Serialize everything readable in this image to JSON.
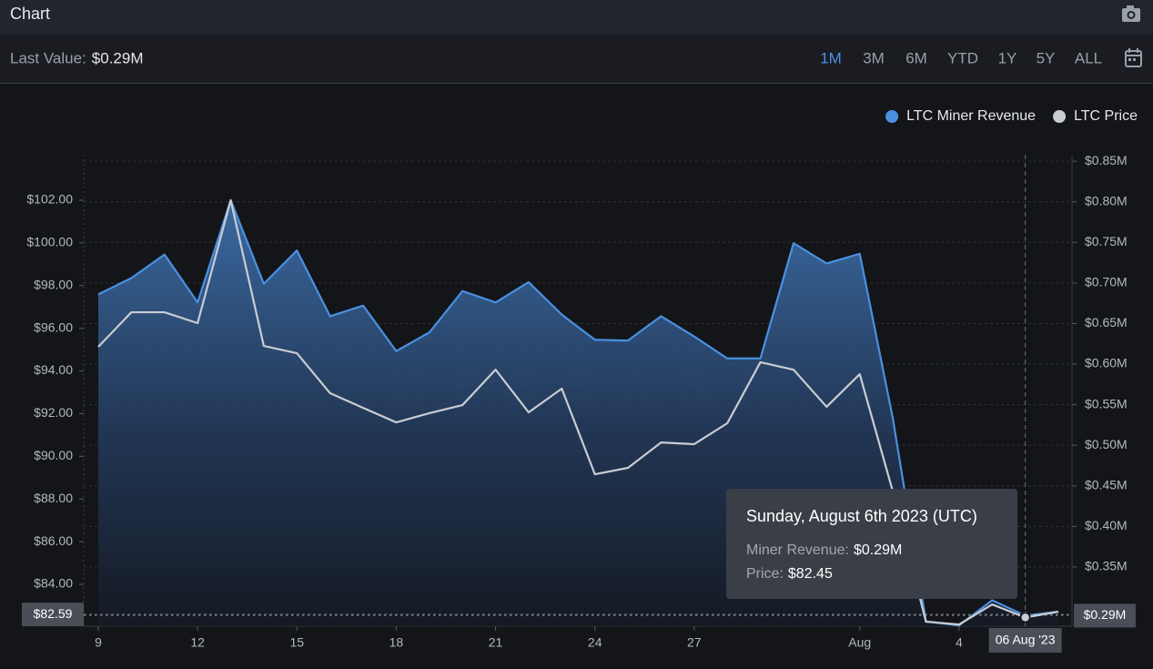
{
  "header": {
    "title": "Chart"
  },
  "toolbar": {
    "last_value_label": "Last Value:",
    "last_value": "$0.29M",
    "ranges": [
      "1M",
      "3M",
      "6M",
      "YTD",
      "1Y",
      "5Y",
      "ALL"
    ],
    "active_range_index": 0
  },
  "chart_data": {
    "type": "line",
    "watermark": "MESSARI",
    "legend": "top-right",
    "categories": [
      "9",
      null,
      null,
      "12",
      null,
      null,
      "15",
      null,
      null,
      "18",
      null,
      null,
      "21",
      null,
      null,
      "24",
      null,
      null,
      "27",
      null,
      null,
      null,
      null,
      "Aug",
      null,
      null,
      "4",
      null,
      null,
      null
    ],
    "series": [
      {
        "name": "LTC Miner Revenue",
        "color": "#4a90e2",
        "axis": "y2",
        "values": [
          0.686,
          0.706,
          0.735,
          0.676,
          0.802,
          0.699,
          0.74,
          0.659,
          0.672,
          0.616,
          0.639,
          0.69,
          0.676,
          0.701,
          0.661,
          0.63,
          0.629,
          0.659,
          0.634,
          0.607,
          0.607,
          0.749,
          0.724,
          0.736,
          0.533,
          0.283,
          0.278,
          0.309,
          0.29,
          0.295
        ]
      },
      {
        "name": "LTC Price",
        "color": "#c9ccd2",
        "axis": "y",
        "values": [
          95.13,
          96.75,
          96.75,
          96.24,
          102.0,
          95.17,
          94.83,
          92.96,
          92.27,
          91.59,
          92.02,
          92.4,
          94.06,
          92.06,
          93.17,
          89.16,
          89.46,
          90.65,
          90.57,
          91.55,
          94.41,
          94.06,
          92.32,
          93.85,
          88.35,
          82.25,
          82.12,
          83.06,
          82.45,
          82.72
        ]
      }
    ],
    "ylim": [
      82.04,
      104.13
    ],
    "yticks": [
      {
        "value": 84,
        "label": "$84.00"
      },
      {
        "value": 86,
        "label": "$86.00"
      },
      {
        "value": 88,
        "label": "$88.00"
      },
      {
        "value": 90,
        "label": "$90.00"
      },
      {
        "value": 92,
        "label": "$92.00"
      },
      {
        "value": 94,
        "label": "$94.00"
      },
      {
        "value": 96,
        "label": "$96.00"
      },
      {
        "value": 98,
        "label": "$98.00"
      },
      {
        "value": 100,
        "label": "$100.00"
      },
      {
        "value": 102,
        "label": "$102.00"
      }
    ],
    "y2lim": [
      0.277,
      0.858
    ],
    "y2ticks": [
      {
        "value": 0.35,
        "label": "$0.35M"
      },
      {
        "value": 0.4,
        "label": "$0.40M"
      },
      {
        "value": 0.45,
        "label": "$0.45M"
      },
      {
        "value": 0.5,
        "label": "$0.50M"
      },
      {
        "value": 0.55,
        "label": "$0.55M"
      },
      {
        "value": 0.6,
        "label": "$0.60M"
      },
      {
        "value": 0.65,
        "label": "$0.65M"
      },
      {
        "value": 0.7,
        "label": "$0.70M"
      },
      {
        "value": 0.75,
        "label": "$0.75M"
      },
      {
        "value": 0.8,
        "label": "$0.80M"
      },
      {
        "value": 0.85,
        "label": "$0.85M"
      }
    ],
    "grid": true,
    "left_badge": {
      "value": 82.59,
      "label": "$82.59"
    },
    "right_badge": {
      "value": 0.29,
      "label": "$0.29M"
    },
    "crosshair_index": 28,
    "crosshair_label": "06 Aug '23",
    "tooltip": {
      "title": "Sunday, August 6th 2023 (UTC)",
      "rows": [
        {
          "label": "Miner Revenue:",
          "value": "$0.29M"
        },
        {
          "label": "Price:",
          "value": "$82.45"
        }
      ]
    }
  }
}
